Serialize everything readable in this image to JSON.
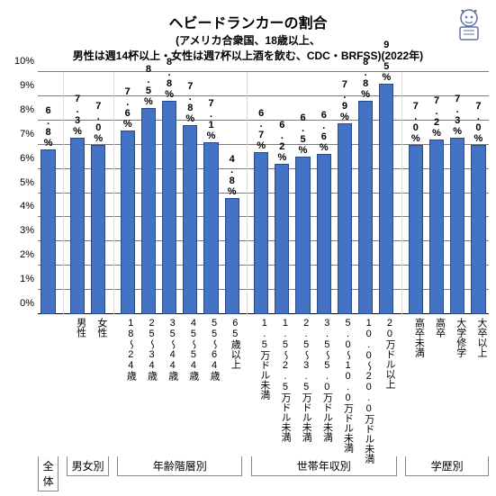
{
  "title": {
    "line1": "ヘビードランカーの割合",
    "line2": "(アメリカ合衆国、18歳以上、",
    "line3": "男性は週14杯以上・女性は週7杯以上酒を飲む、CDC・BRFSS)(2022年)"
  },
  "chart": {
    "type": "bar",
    "bar_color": "#4472c4",
    "bar_border_color": "#2a4a8a",
    "grid_color": "#7c7c7c",
    "background_color": "#ffffff",
    "ymin": 0,
    "ymax": 10,
    "yticks": [
      0,
      1,
      2,
      3,
      4,
      5,
      6,
      7,
      8,
      9,
      10
    ],
    "ytick_labels": [
      "0%",
      "1%",
      "2%",
      "3%",
      "4%",
      "5%",
      "6%",
      "7%",
      "8%",
      "9%",
      "10%"
    ],
    "label_fontsize": 11,
    "label_fontweight": "bold",
    "groups": [
      {
        "name": "全体",
        "bars": [
          {
            "label": "",
            "value": 6.8,
            "display": "6.8%"
          }
        ]
      },
      {
        "name": "男女別",
        "bars": [
          {
            "label": "男性",
            "value": 7.3,
            "display": "7.3%"
          },
          {
            "label": "女性",
            "value": 7.0,
            "display": "7.0%"
          }
        ]
      },
      {
        "name": "年齢階層別",
        "bars": [
          {
            "label": "18～24歳",
            "value": 7.6,
            "display": "7.6%"
          },
          {
            "label": "25～34歳",
            "value": 8.5,
            "display": "8.5%"
          },
          {
            "label": "35～44歳",
            "value": 8.8,
            "display": "8.8%"
          },
          {
            "label": "45～54歳",
            "value": 7.8,
            "display": "7.8%"
          },
          {
            "label": "55～64歳",
            "value": 7.1,
            "display": "7.1%"
          },
          {
            "label": "65歳以上",
            "value": 4.8,
            "display": "4.8%"
          }
        ]
      },
      {
        "name": "世帯年収別",
        "bars": [
          {
            "label": "1.5万ドル未満",
            "value": 6.7,
            "display": "6.7%"
          },
          {
            "label": "1.5～2.5万ドル未満",
            "value": 6.2,
            "display": "6.2%"
          },
          {
            "label": "2.5～3.5万ドル未満",
            "value": 6.5,
            "display": "6.5%"
          },
          {
            "label": "3.5～5.0万ドル未満",
            "value": 6.6,
            "display": "6.6%"
          },
          {
            "label": "5.0～10.0万ドル未満",
            "value": 7.9,
            "display": "7.9%"
          },
          {
            "label": "10.0～20.0万ドル未満",
            "value": 8.8,
            "display": "8.8%"
          },
          {
            "label": "20万ドル以上",
            "value": 9.5,
            "display": "9.5%"
          }
        ]
      },
      {
        "name": "学歴別",
        "bars": [
          {
            "label": "高卒未満",
            "value": 7.0,
            "display": "7.0%"
          },
          {
            "label": "高卒",
            "value": 7.2,
            "display": "7.2%"
          },
          {
            "label": "大学修学",
            "value": 7.3,
            "display": "7.3%"
          },
          {
            "label": "大卒以上",
            "value": 7.0,
            "display": "7.0%"
          }
        ]
      }
    ]
  }
}
